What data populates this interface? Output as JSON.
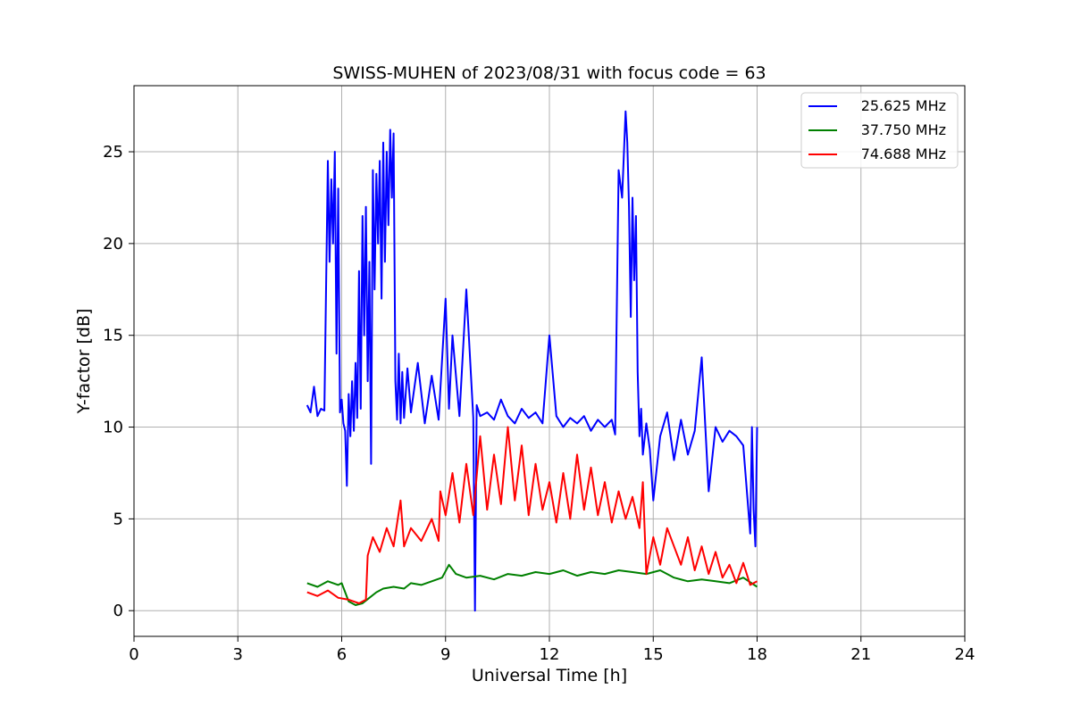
{
  "chart_data": {
    "type": "line",
    "title": "SWISS-MUHEN of 2023/08/31 with focus code = 63",
    "xlabel": "Universal Time [h]",
    "ylabel": "Y-factor [dB]",
    "xlim": [
      0,
      24
    ],
    "ylim": [
      -1.4,
      28.6
    ],
    "xticks": [
      0,
      3,
      6,
      9,
      12,
      15,
      18,
      21,
      24
    ],
    "yticks": [
      0,
      5,
      10,
      15,
      20,
      25
    ],
    "grid": true,
    "legend_position": "top-right",
    "series": [
      {
        "name": "25.625 MHz",
        "color": "#0000ff",
        "x": [
          5.0,
          5.1,
          5.2,
          5.3,
          5.4,
          5.5,
          5.6,
          5.65,
          5.7,
          5.75,
          5.8,
          5.85,
          5.9,
          5.95,
          6.0,
          6.05,
          6.1,
          6.15,
          6.2,
          6.25,
          6.3,
          6.35,
          6.4,
          6.45,
          6.5,
          6.55,
          6.6,
          6.65,
          6.7,
          6.75,
          6.8,
          6.85,
          6.9,
          6.95,
          7.0,
          7.05,
          7.1,
          7.15,
          7.2,
          7.25,
          7.3,
          7.35,
          7.4,
          7.45,
          7.5,
          7.55,
          7.6,
          7.65,
          7.7,
          7.75,
          7.8,
          7.9,
          8.0,
          8.2,
          8.4,
          8.6,
          8.8,
          9.0,
          9.1,
          9.2,
          9.4,
          9.6,
          9.8,
          9.85,
          9.9,
          10.0,
          10.2,
          10.4,
          10.6,
          10.8,
          11.0,
          11.2,
          11.4,
          11.6,
          11.8,
          12.0,
          12.2,
          12.4,
          12.6,
          12.8,
          13.0,
          13.2,
          13.4,
          13.6,
          13.8,
          13.9,
          14.0,
          14.1,
          14.2,
          14.25,
          14.3,
          14.35,
          14.4,
          14.45,
          14.5,
          14.55,
          14.6,
          14.65,
          14.7,
          14.8,
          14.9,
          15.0,
          15.2,
          15.4,
          15.6,
          15.8,
          16.0,
          16.2,
          16.4,
          16.6,
          16.8,
          17.0,
          17.2,
          17.4,
          17.6,
          17.8,
          17.85,
          17.9,
          17.95,
          18.0
        ],
        "y": [
          11.2,
          10.8,
          12.2,
          10.6,
          11.0,
          10.9,
          24.5,
          19.0,
          23.5,
          20.0,
          25.0,
          14.0,
          23.0,
          10.8,
          11.5,
          10.2,
          9.8,
          6.8,
          11.8,
          9.5,
          12.5,
          9.8,
          13.5,
          10.5,
          18.5,
          11.0,
          21.5,
          15.0,
          22.0,
          12.5,
          19.0,
          8.0,
          24.0,
          17.5,
          23.8,
          20.0,
          24.5,
          17.0,
          25.5,
          19.0,
          25.0,
          21.0,
          26.2,
          22.5,
          26.0,
          12.5,
          10.4,
          14.0,
          10.2,
          13.0,
          10.5,
          13.2,
          10.8,
          13.5,
          10.2,
          12.8,
          10.4,
          17.0,
          11.0,
          15.0,
          10.6,
          17.5,
          10.5,
          0.0,
          11.2,
          10.6,
          10.8,
          10.4,
          11.5,
          10.6,
          10.2,
          11.0,
          10.5,
          10.8,
          10.2,
          15.0,
          10.6,
          10.0,
          10.5,
          10.2,
          10.6,
          9.8,
          10.4,
          10.0,
          10.4,
          9.6,
          24.0,
          22.5,
          27.2,
          25.5,
          22.0,
          16.0,
          22.5,
          18.0,
          21.5,
          13.0,
          9.5,
          11.0,
          8.5,
          10.2,
          8.8,
          6.0,
          9.5,
          10.8,
          8.2,
          10.4,
          8.5,
          9.8,
          13.8,
          6.5,
          10.0,
          9.2,
          9.8,
          9.5,
          9.0,
          4.2,
          10.0,
          5.5,
          3.5,
          10.0
        ]
      },
      {
        "name": "37.750 MHz",
        "color": "#008000",
        "x": [
          5.0,
          5.3,
          5.6,
          5.9,
          6.0,
          6.2,
          6.4,
          6.6,
          6.8,
          7.0,
          7.2,
          7.5,
          7.8,
          8.0,
          8.3,
          8.6,
          8.9,
          9.1,
          9.3,
          9.6,
          10.0,
          10.4,
          10.8,
          11.2,
          11.6,
          12.0,
          12.4,
          12.8,
          13.2,
          13.6,
          14.0,
          14.4,
          14.8,
          15.2,
          15.6,
          16.0,
          16.4,
          16.8,
          17.2,
          17.6,
          18.0
        ],
        "y": [
          1.5,
          1.3,
          1.6,
          1.4,
          1.5,
          0.5,
          0.3,
          0.4,
          0.7,
          1.0,
          1.2,
          1.3,
          1.2,
          1.5,
          1.4,
          1.6,
          1.8,
          2.5,
          2.0,
          1.8,
          1.9,
          1.7,
          2.0,
          1.9,
          2.1,
          2.0,
          2.2,
          1.9,
          2.1,
          2.0,
          2.2,
          2.1,
          2.0,
          2.2,
          1.8,
          1.6,
          1.7,
          1.6,
          1.5,
          1.8,
          1.3
        ]
      },
      {
        "name": "74.688 MHz",
        "color": "#ff0000",
        "x": [
          5.0,
          5.3,
          5.6,
          5.9,
          6.2,
          6.5,
          6.7,
          6.75,
          6.9,
          7.1,
          7.3,
          7.5,
          7.7,
          7.8,
          8.0,
          8.3,
          8.6,
          8.8,
          8.85,
          9.0,
          9.2,
          9.4,
          9.6,
          9.8,
          10.0,
          10.2,
          10.4,
          10.6,
          10.8,
          11.0,
          11.2,
          11.4,
          11.6,
          11.8,
          12.0,
          12.2,
          12.4,
          12.6,
          12.8,
          13.0,
          13.2,
          13.4,
          13.6,
          13.8,
          14.0,
          14.2,
          14.4,
          14.6,
          14.7,
          14.8,
          15.0,
          15.2,
          15.4,
          15.6,
          15.8,
          16.0,
          16.2,
          16.4,
          16.6,
          16.8,
          17.0,
          17.2,
          17.4,
          17.6,
          17.8,
          18.0
        ],
        "y": [
          1.0,
          0.8,
          1.1,
          0.7,
          0.6,
          0.4,
          0.6,
          3.0,
          4.0,
          3.2,
          4.5,
          3.5,
          6.0,
          3.5,
          4.5,
          3.8,
          5.0,
          3.8,
          6.5,
          5.2,
          7.5,
          4.8,
          8.0,
          5.2,
          9.5,
          5.5,
          8.5,
          5.8,
          10.0,
          6.0,
          9.0,
          5.2,
          8.0,
          5.5,
          7.0,
          4.8,
          7.5,
          5.0,
          8.5,
          5.5,
          7.8,
          5.2,
          7.0,
          4.8,
          6.5,
          5.0,
          6.2,
          4.5,
          7.0,
          2.0,
          4.0,
          2.5,
          4.5,
          3.5,
          2.5,
          4.0,
          2.2,
          3.5,
          2.0,
          3.2,
          1.8,
          2.5,
          1.5,
          2.6,
          1.4,
          1.6
        ]
      }
    ]
  }
}
